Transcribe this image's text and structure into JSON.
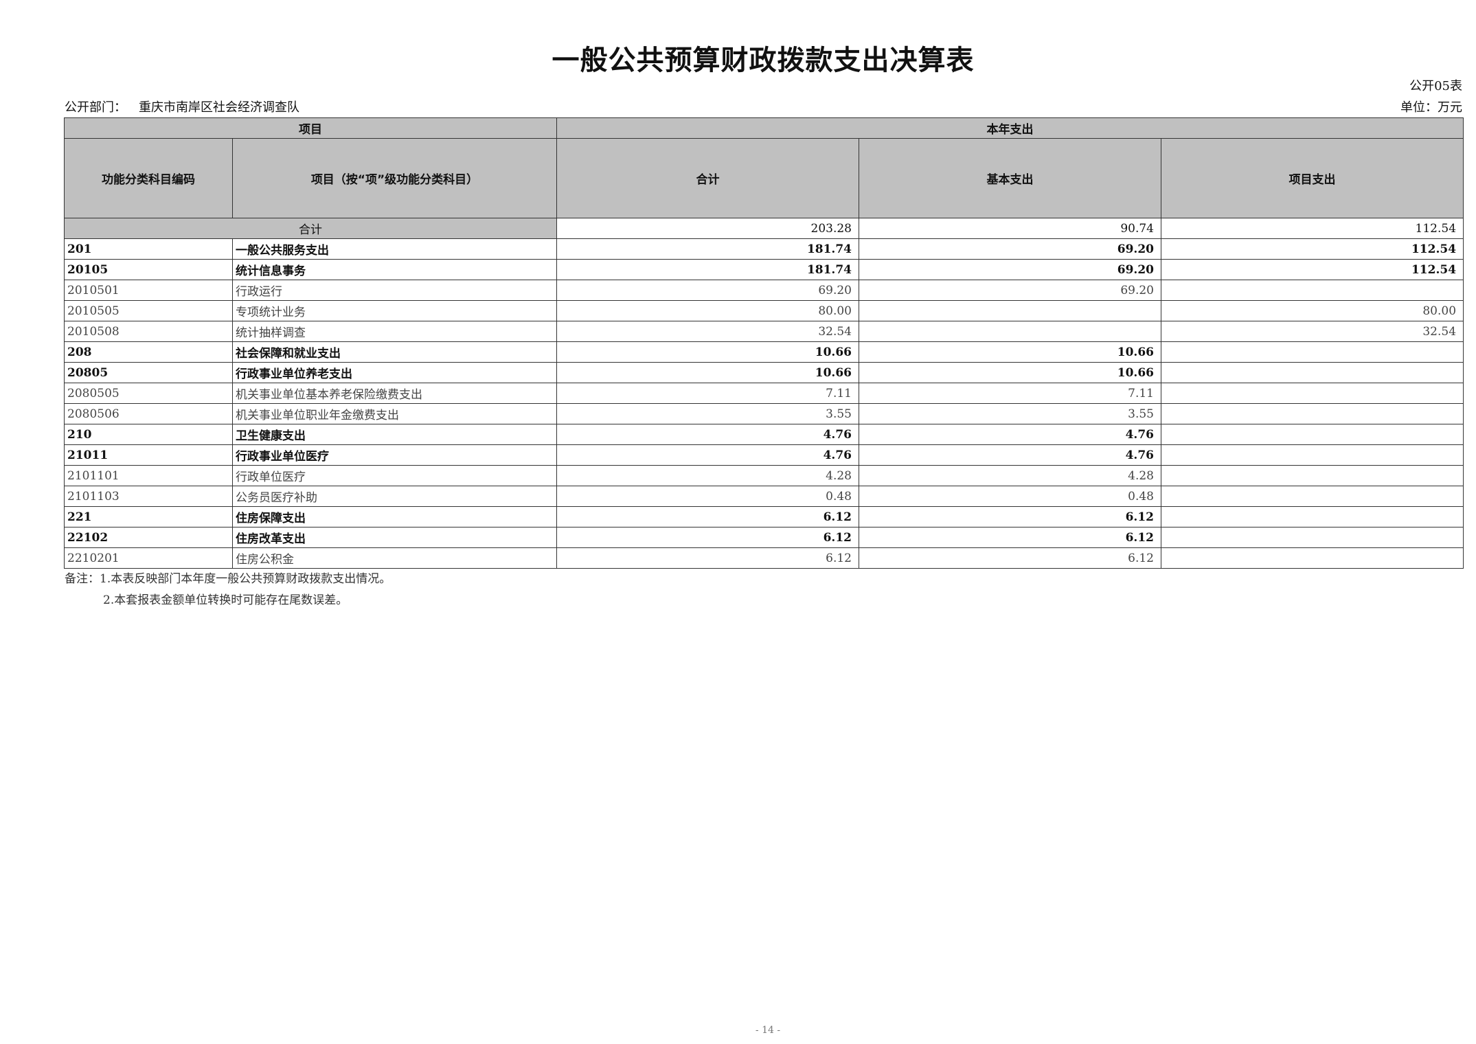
{
  "title": "一般公共预算财政拨款支出决算表",
  "table_no": "公开05表",
  "dept_label": "公开部门：",
  "dept_name": "重庆市南岸区社会经济调查队",
  "unit": "单位：万元",
  "header": {
    "item": "项目",
    "current_year": "本年支出",
    "code": "功能分类科目编码",
    "name": "项目（按“项”级功能分类科目）",
    "total": "合计",
    "basic": "基本支出",
    "project": "项目支出"
  },
  "total_row": {
    "label": "合计",
    "total": "203.28",
    "basic": "90.74",
    "project": "112.54"
  },
  "rows": [
    {
      "code": "201",
      "name": "一般公共服务支出",
      "total": "181.74",
      "basic": "69.20",
      "project": "112.54",
      "bold": true
    },
    {
      "code": "20105",
      "name": "统计信息事务",
      "total": "181.74",
      "basic": "69.20",
      "project": "112.54",
      "bold": true
    },
    {
      "code": "2010501",
      "name": "行政运行",
      "total": "69.20",
      "basic": "69.20",
      "project": ""
    },
    {
      "code": "2010505",
      "name": "专项统计业务",
      "total": "80.00",
      "basic": "",
      "project": "80.00"
    },
    {
      "code": "2010508",
      "name": "统计抽样调查",
      "total": "32.54",
      "basic": "",
      "project": "32.54"
    },
    {
      "code": "208",
      "name": "社会保障和就业支出",
      "total": "10.66",
      "basic": "10.66",
      "project": "",
      "bold": true
    },
    {
      "code": "20805",
      "name": "行政事业单位养老支出",
      "total": "10.66",
      "basic": "10.66",
      "project": "",
      "bold": true
    },
    {
      "code": "2080505",
      "name": "机关事业单位基本养老保险缴费支出",
      "total": "7.11",
      "basic": "7.11",
      "project": ""
    },
    {
      "code": "2080506",
      "name": "机关事业单位职业年金缴费支出",
      "total": "3.55",
      "basic": "3.55",
      "project": ""
    },
    {
      "code": "210",
      "name": "卫生健康支出",
      "total": "4.76",
      "basic": "4.76",
      "project": "",
      "bold": true
    },
    {
      "code": "21011",
      "name": "行政事业单位医疗",
      "total": "4.76",
      "basic": "4.76",
      "project": "",
      "bold": true
    },
    {
      "code": "2101101",
      "name": "行政单位医疗",
      "total": "4.28",
      "basic": "4.28",
      "project": ""
    },
    {
      "code": "2101103",
      "name": "公务员医疗补助",
      "total": "0.48",
      "basic": "0.48",
      "project": ""
    },
    {
      "code": "221",
      "name": "住房保障支出",
      "total": "6.12",
      "basic": "6.12",
      "project": "",
      "bold": true
    },
    {
      "code": "22102",
      "name": "住房改革支出",
      "total": "6.12",
      "basic": "6.12",
      "project": "",
      "bold": true
    },
    {
      "code": "2210201",
      "name": "住房公积金",
      "total": "6.12",
      "basic": "6.12",
      "project": ""
    }
  ],
  "notes": [
    "备注：1.本表反映部门本年度一般公共预算财政拨款支出情况。",
    "2.本套报表金额单位转换时可能存在尾数误差。"
  ],
  "page_number": "- 14 -"
}
